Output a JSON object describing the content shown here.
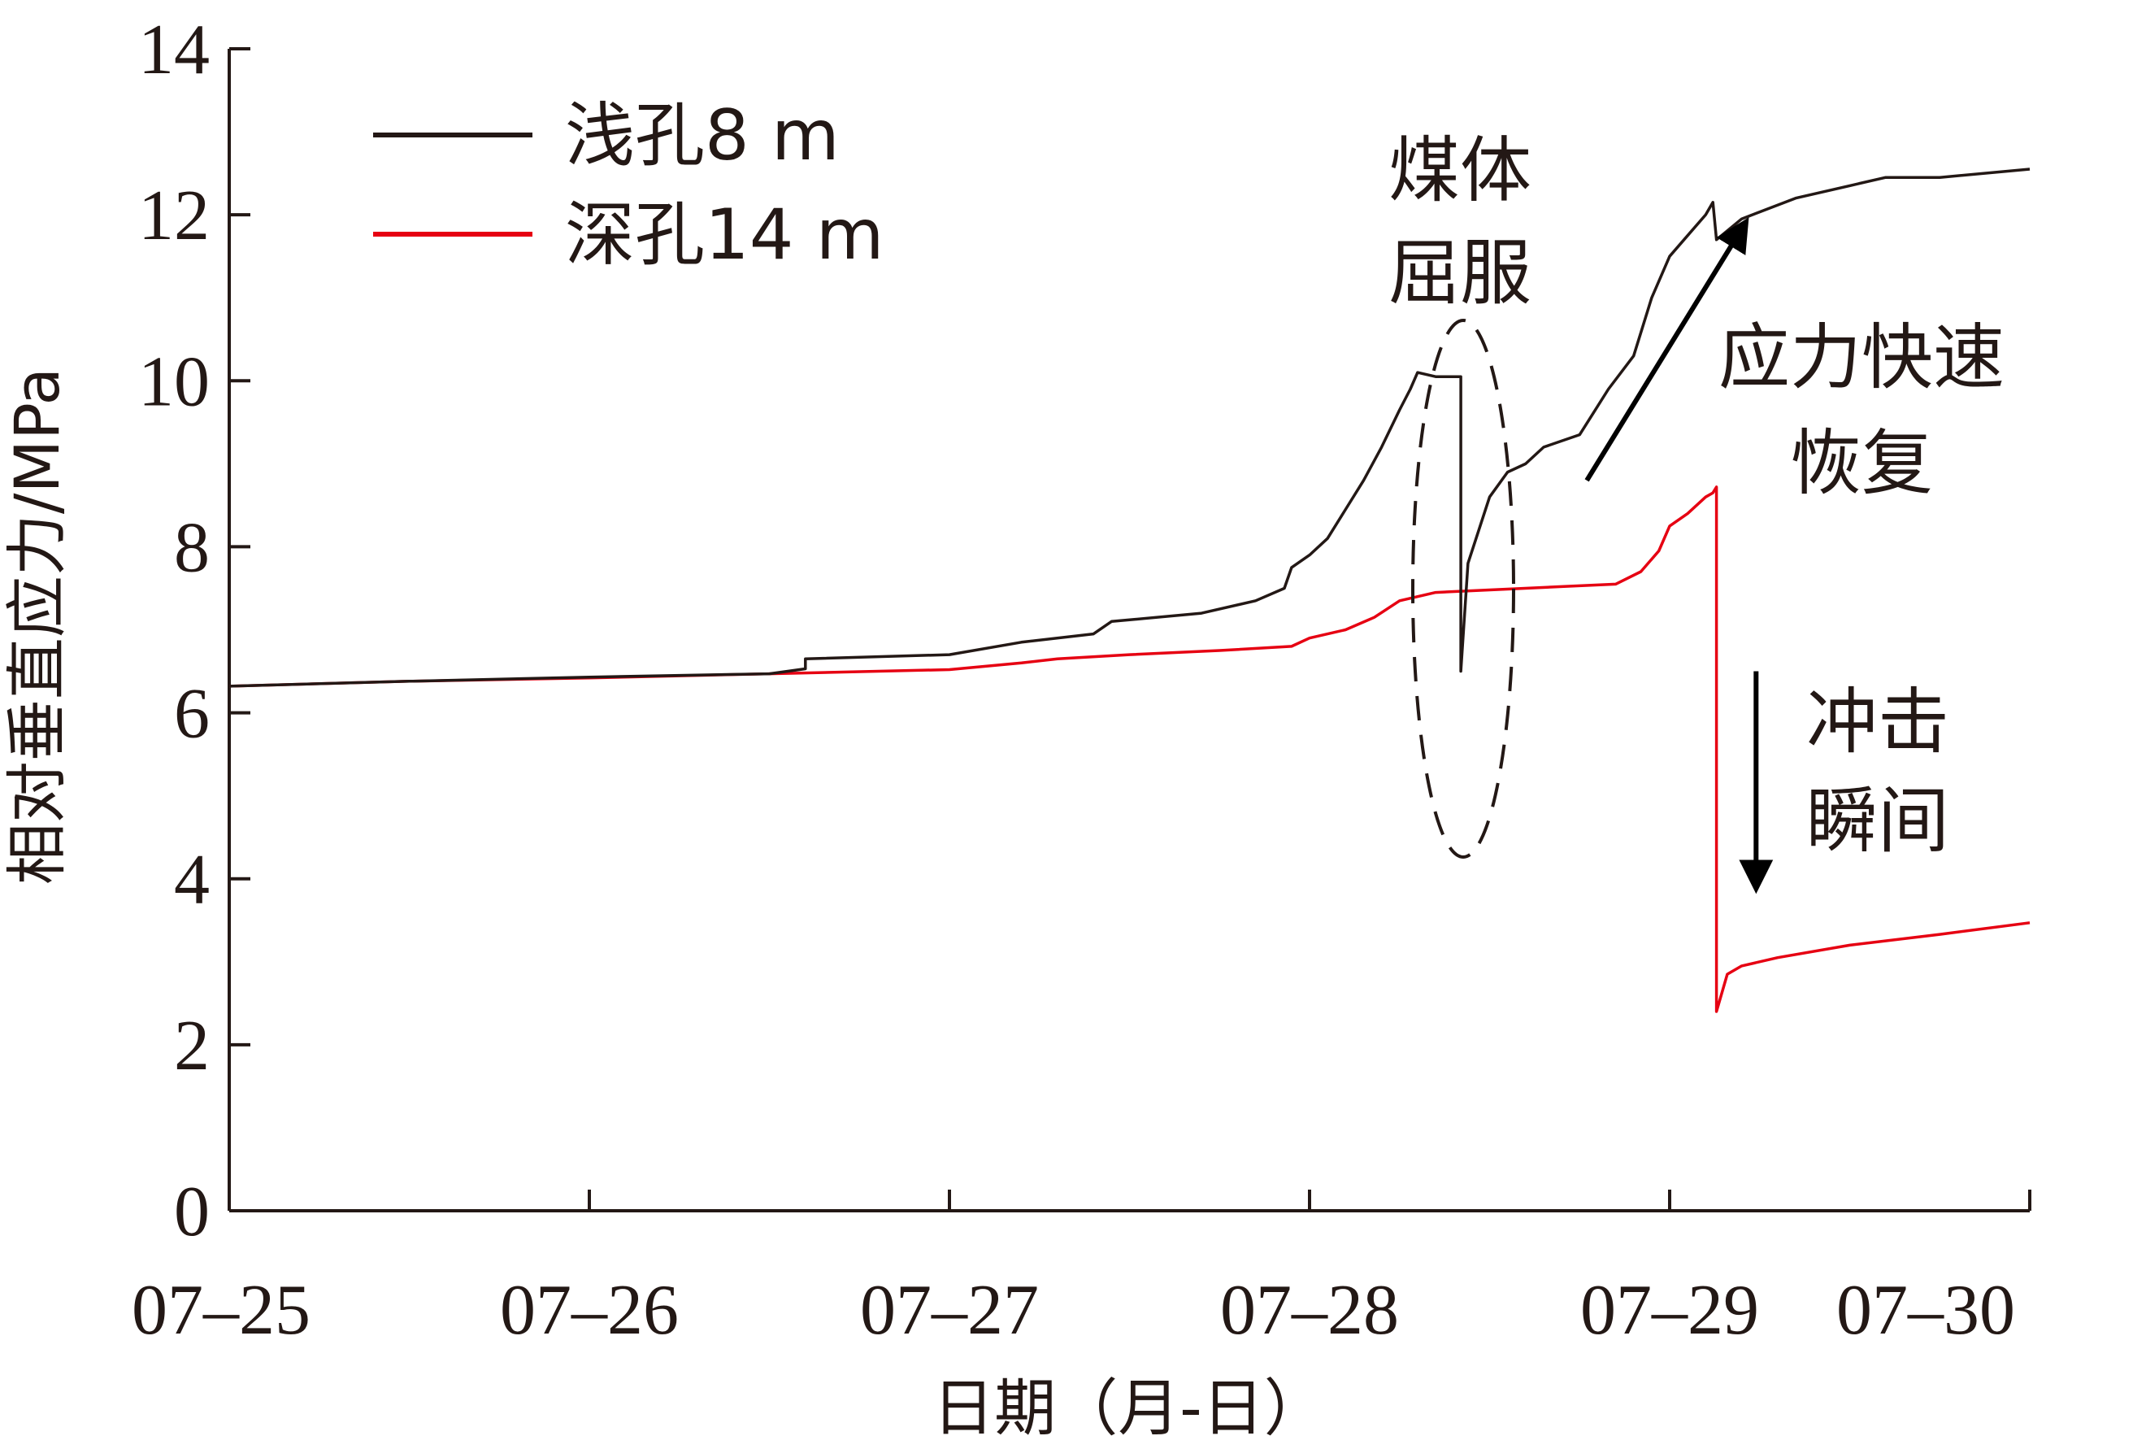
{
  "chart_data": {
    "type": "line",
    "xlabel": "日期（月-日）",
    "ylabel": "相对垂直应力/MPa",
    "xlim": [
      0,
      5
    ],
    "ylim": [
      0,
      14
    ],
    "x_ticks": [
      {
        "value": 0,
        "label": "07–25"
      },
      {
        "value": 1,
        "label": "07–26"
      },
      {
        "value": 2,
        "label": "07–27"
      },
      {
        "value": 3,
        "label": "07–28"
      },
      {
        "value": 4,
        "label": "07–29"
      },
      {
        "value": 5,
        "label": "07–30"
      }
    ],
    "y_ticks": [
      0,
      2,
      4,
      6,
      8,
      10,
      12,
      14
    ],
    "grid": false,
    "legend_position": "top-left",
    "series": [
      {
        "name": "浅孔8 m",
        "color": "#231815",
        "points": [
          [
            0.0,
            6.32
          ],
          [
            0.5,
            6.38
          ],
          [
            1.0,
            6.43
          ],
          [
            1.5,
            6.47
          ],
          [
            1.6,
            6.53
          ],
          [
            1.6,
            6.65
          ],
          [
            2.0,
            6.7
          ],
          [
            2.2,
            6.85
          ],
          [
            2.4,
            6.95
          ],
          [
            2.45,
            7.1
          ],
          [
            2.7,
            7.2
          ],
          [
            2.85,
            7.35
          ],
          [
            2.93,
            7.5
          ],
          [
            2.95,
            7.75
          ],
          [
            3.0,
            7.9
          ],
          [
            3.05,
            8.1
          ],
          [
            3.1,
            8.45
          ],
          [
            3.15,
            8.8
          ],
          [
            3.2,
            9.2
          ],
          [
            3.25,
            9.65
          ],
          [
            3.28,
            9.9
          ],
          [
            3.3,
            10.1
          ],
          [
            3.35,
            10.05
          ],
          [
            3.42,
            10.05
          ],
          [
            3.42,
            6.5
          ],
          [
            3.44,
            7.8
          ],
          [
            3.5,
            8.6
          ],
          [
            3.55,
            8.9
          ],
          [
            3.6,
            9.0
          ],
          [
            3.65,
            9.2
          ],
          [
            3.75,
            9.35
          ],
          [
            3.83,
            9.9
          ],
          [
            3.9,
            10.3
          ],
          [
            3.95,
            11.0
          ],
          [
            4.0,
            11.5
          ],
          [
            4.05,
            11.75
          ],
          [
            4.1,
            12.0
          ],
          [
            4.12,
            12.15
          ],
          [
            4.13,
            11.7
          ],
          [
            4.2,
            11.95
          ],
          [
            4.35,
            12.2
          ],
          [
            4.5,
            12.35
          ],
          [
            4.6,
            12.45
          ],
          [
            4.75,
            12.45
          ],
          [
            5.0,
            12.55
          ]
        ]
      },
      {
        "name": "深孔14 m",
        "color": "#e60012",
        "points": [
          [
            0.0,
            6.32
          ],
          [
            0.5,
            6.38
          ],
          [
            1.0,
            6.42
          ],
          [
            1.5,
            6.47
          ],
          [
            2.0,
            6.52
          ],
          [
            2.2,
            6.6
          ],
          [
            2.3,
            6.65
          ],
          [
            2.5,
            6.7
          ],
          [
            2.75,
            6.75
          ],
          [
            2.95,
            6.8
          ],
          [
            3.0,
            6.9
          ],
          [
            3.1,
            7.0
          ],
          [
            3.18,
            7.15
          ],
          [
            3.25,
            7.35
          ],
          [
            3.35,
            7.45
          ],
          [
            3.5,
            7.48
          ],
          [
            3.7,
            7.52
          ],
          [
            3.85,
            7.55
          ],
          [
            3.92,
            7.7
          ],
          [
            3.97,
            7.95
          ],
          [
            4.0,
            8.25
          ],
          [
            4.05,
            8.4
          ],
          [
            4.1,
            8.6
          ],
          [
            4.12,
            8.65
          ],
          [
            4.13,
            8.72
          ],
          [
            4.13,
            2.4
          ],
          [
            4.16,
            2.85
          ],
          [
            4.2,
            2.95
          ],
          [
            4.3,
            3.05
          ],
          [
            4.5,
            3.2
          ],
          [
            4.75,
            3.33
          ],
          [
            5.0,
            3.47
          ]
        ]
      }
    ],
    "annotations": [
      {
        "lines": [
          "煤体",
          "屈服"
        ],
        "x": 3.41,
        "y": 8.5,
        "shape": "dashed-ellipse"
      },
      {
        "lines": [
          "应力快速",
          "恢复"
        ],
        "arrow": "up",
        "arrow_from": [
          3.77,
          8.8
        ],
        "arrow_to": [
          4.21,
          11.9
        ]
      },
      {
        "lines": [
          "冲击",
          "瞬间"
        ],
        "arrow": "down",
        "arrow_from": [
          4.24,
          6.5
        ],
        "arrow_to": [
          4.24,
          3.9
        ]
      }
    ]
  }
}
